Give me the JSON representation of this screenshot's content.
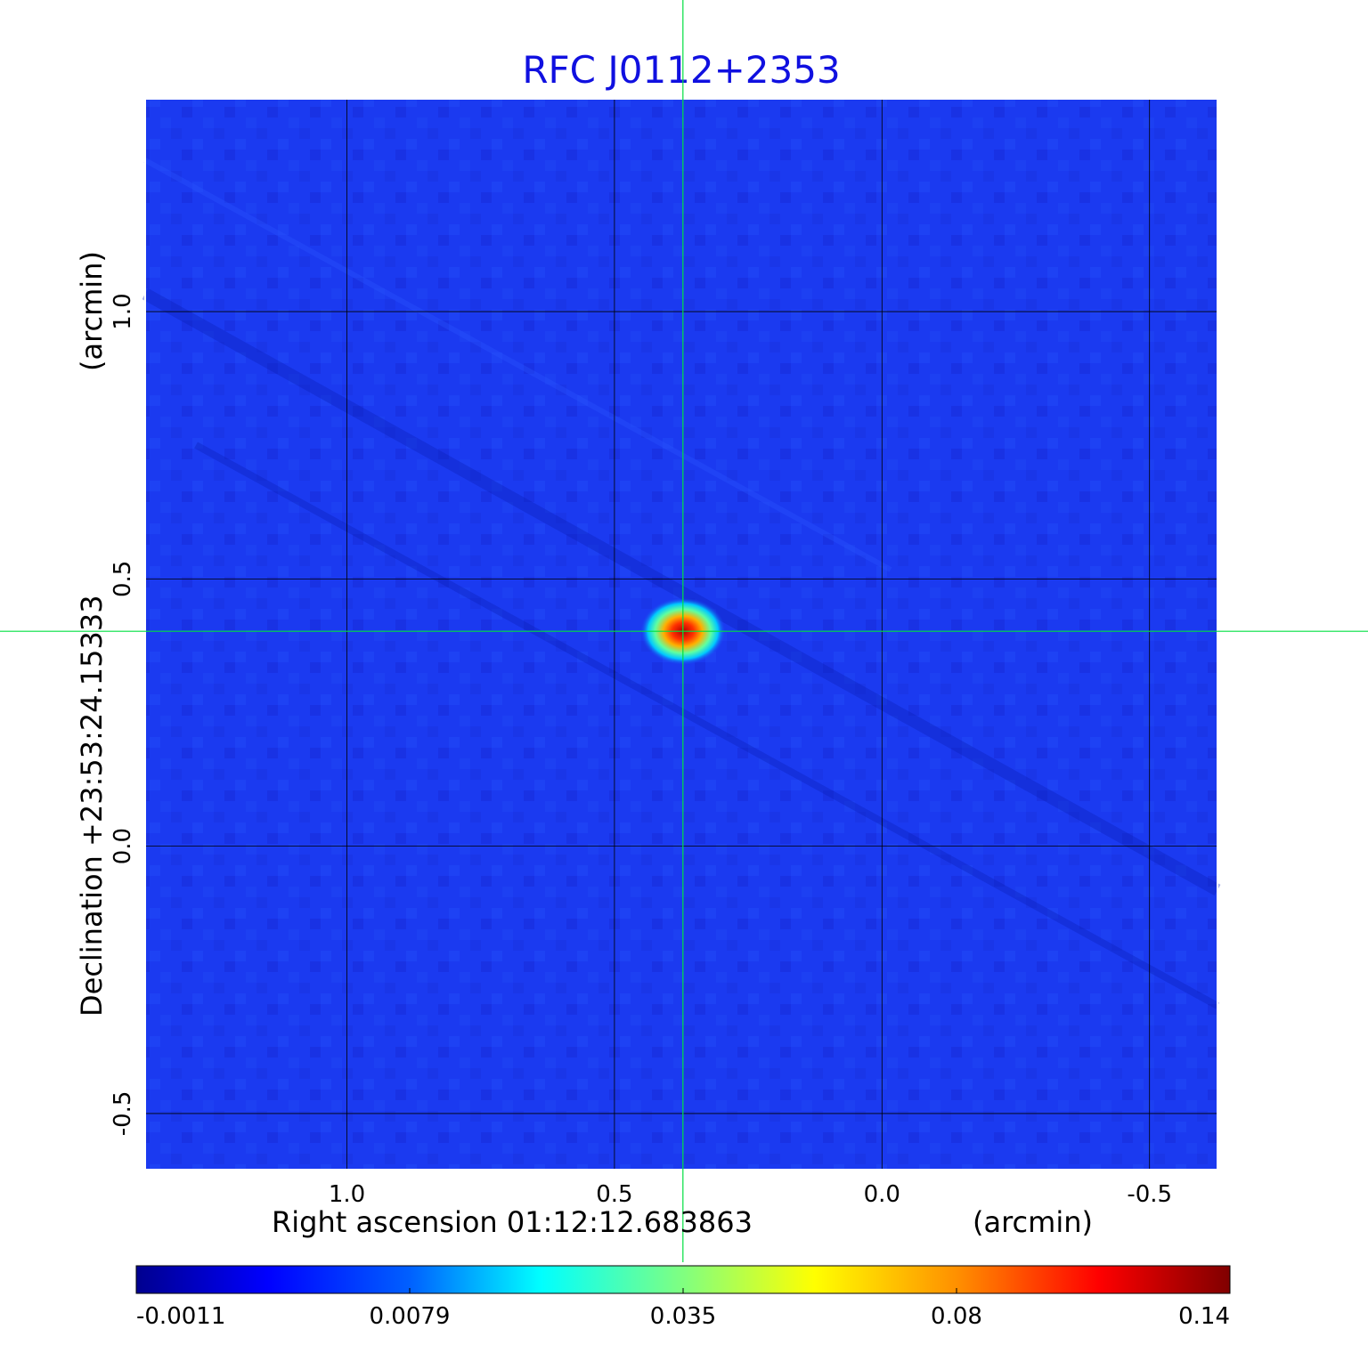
{
  "chart_data": {
    "type": "heatmap",
    "title": "RFC J0112+2353",
    "xlabel": "Right ascension  01:12:12.683863",
    "xunit": "(arcmin)",
    "ylabel": "Declination  +23:53:24.15333",
    "yunit": "(arcmin)",
    "xlim": [
      1.377,
      -0.627
    ],
    "ylim": [
      -0.605,
      1.398
    ],
    "x_ticks": [
      {
        "value": 1.0,
        "label": "1.0"
      },
      {
        "value": 0.5,
        "label": "0.5"
      },
      {
        "value": 0.0,
        "label": "0.0"
      },
      {
        "value": -0.5,
        "label": "-0.5"
      }
    ],
    "y_ticks": [
      {
        "value": 1.0,
        "label": "1.0"
      },
      {
        "value": 0.5,
        "label": "0.5"
      },
      {
        "value": 0.0,
        "label": "0.0"
      },
      {
        "value": -0.5,
        "label": "-0.5"
      }
    ],
    "grid": true,
    "crosshair": {
      "x": 0.372,
      "y": 0.402
    },
    "peak": {
      "x": 0.372,
      "y": 0.402,
      "value": 0.14
    },
    "colorbar": {
      "ticks": [
        {
          "value": -0.0011,
          "label": "-0.0011"
        },
        {
          "value": 0.0079,
          "label": "0.0079"
        },
        {
          "value": 0.035,
          "label": "0.035"
        },
        {
          "value": 0.08,
          "label": "0.08"
        },
        {
          "value": 0.14,
          "label": "0.14"
        }
      ],
      "colormap": "jet"
    }
  },
  "colors": {
    "title": "#1010e0",
    "background_map": "#1b3af0",
    "crosshair": "#00e040",
    "grid": "#000000"
  }
}
